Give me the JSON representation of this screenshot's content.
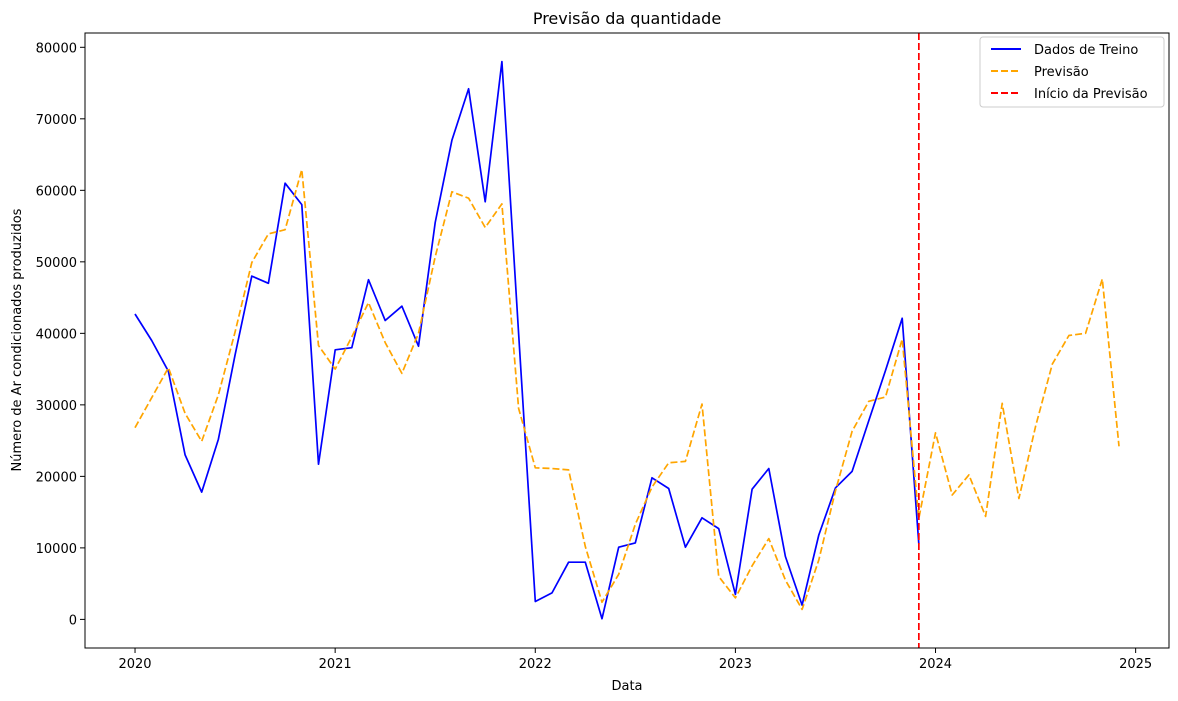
{
  "chart_data": {
    "type": "line",
    "title": "Previsão da quantidade",
    "xlabel": "Data",
    "ylabel": "Número de Ar condicionados produzidos",
    "x_ticks": [
      "2020",
      "2021",
      "2022",
      "2023",
      "2024",
      "2025"
    ],
    "y_ticks": [
      "0",
      "10000",
      "20000",
      "30000",
      "40000",
      "50000",
      "60000",
      "70000",
      "80000"
    ],
    "xlim": [
      "2019-10-01",
      "2025-03-01"
    ],
    "ylim": [
      -4000,
      82000
    ],
    "grid": false,
    "legend_position": "top-right",
    "series": [
      {
        "name": "Dados de Treino",
        "style": "solid",
        "color": "#0000ff",
        "x": [
          "2020-01",
          "2020-02",
          "2020-03",
          "2020-04",
          "2020-05",
          "2020-06",
          "2020-07",
          "2020-08",
          "2020-09",
          "2020-10",
          "2020-11",
          "2020-12",
          "2021-01",
          "2021-02",
          "2021-03",
          "2021-04",
          "2021-05",
          "2021-06",
          "2021-07",
          "2021-08",
          "2021-09",
          "2021-10",
          "2021-11",
          "2021-12",
          "2022-01",
          "2022-02",
          "2022-03",
          "2022-04",
          "2022-05",
          "2022-06",
          "2022-07",
          "2022-08",
          "2022-09",
          "2022-10",
          "2022-11",
          "2022-12",
          "2023-01",
          "2023-02",
          "2023-03",
          "2023-04",
          "2023-05",
          "2023-06",
          "2023-07",
          "2023-08",
          "2023-09",
          "2023-10",
          "2023-11",
          "2023-12"
        ],
        "values": [
          42700,
          39000,
          34700,
          23000,
          17800,
          25200,
          37000,
          48000,
          47000,
          61000,
          58000,
          21700,
          37700,
          38000,
          47500,
          41800,
          43800,
          38200,
          55500,
          67000,
          74200,
          58400,
          78000,
          40000,
          2500,
          3700,
          8000,
          8000,
          100,
          10100,
          10700,
          19800,
          18300,
          10100,
          14200,
          12700,
          3500,
          18200,
          21100,
          8800,
          2000,
          11800,
          18400,
          20700,
          27800,
          34800,
          42100,
          10600
        ]
      },
      {
        "name": "Previsão",
        "style": "dashed",
        "color": "#ffa500",
        "x": [
          "2020-01",
          "2020-02",
          "2020-03",
          "2020-04",
          "2020-05",
          "2020-06",
          "2020-07",
          "2020-08",
          "2020-09",
          "2020-10",
          "2020-11",
          "2020-12",
          "2021-01",
          "2021-02",
          "2021-03",
          "2021-04",
          "2021-05",
          "2021-06",
          "2021-07",
          "2021-08",
          "2021-09",
          "2021-10",
          "2021-11",
          "2021-12",
          "2022-01",
          "2022-02",
          "2022-03",
          "2022-04",
          "2022-05",
          "2022-06",
          "2022-07",
          "2022-08",
          "2022-09",
          "2022-10",
          "2022-11",
          "2022-12",
          "2023-01",
          "2023-02",
          "2023-03",
          "2023-04",
          "2023-05",
          "2023-06",
          "2023-07",
          "2023-08",
          "2023-09",
          "2023-10",
          "2023-11",
          "2023-12",
          "2024-01",
          "2024-02",
          "2024-03",
          "2024-04",
          "2024-05",
          "2024-06",
          "2024-07",
          "2024-08",
          "2024-09",
          "2024-10",
          "2024-11",
          "2024-12"
        ],
        "values": [
          26800,
          31000,
          35200,
          28800,
          24900,
          31400,
          40200,
          49900,
          53900,
          54500,
          62900,
          38300,
          35000,
          39500,
          44300,
          38700,
          34400,
          40000,
          50700,
          59800,
          58900,
          54800,
          58100,
          29500,
          21200,
          21100,
          20900,
          10200,
          2400,
          6300,
          13300,
          18500,
          21900,
          22100,
          30100,
          6000,
          3000,
          7500,
          11300,
          5500,
          1400,
          8300,
          18000,
          26300,
          30500,
          31100,
          39200,
          14100,
          26100,
          17400,
          20200,
          14400,
          30200,
          16900,
          27000,
          35700,
          39700,
          40000,
          47600,
          24200
        ]
      }
    ],
    "annotations": [
      {
        "name": "Início da Previsão",
        "type": "vline",
        "style": "dashed",
        "color": "#ff0000",
        "x": "2023-12"
      }
    ]
  }
}
